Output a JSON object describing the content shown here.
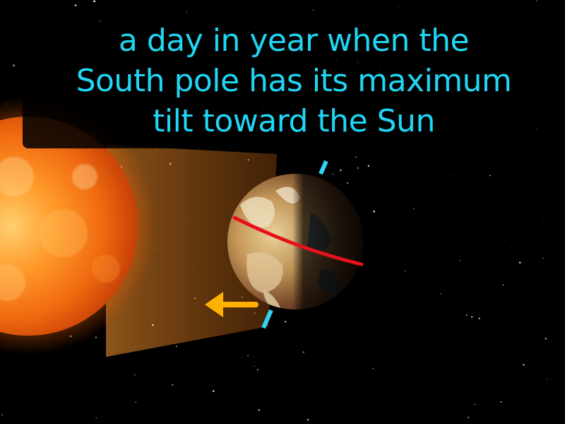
{
  "caption": {
    "lines": [
      "a day in year when the",
      "South pole has its maximum",
      "tilt toward the Sun"
    ]
  },
  "colors": {
    "caption_text": "#1fd7f5",
    "axis": "#2ed6f5",
    "equator": "#e8101a",
    "arrow": "#ffb000",
    "background": "#000000"
  }
}
